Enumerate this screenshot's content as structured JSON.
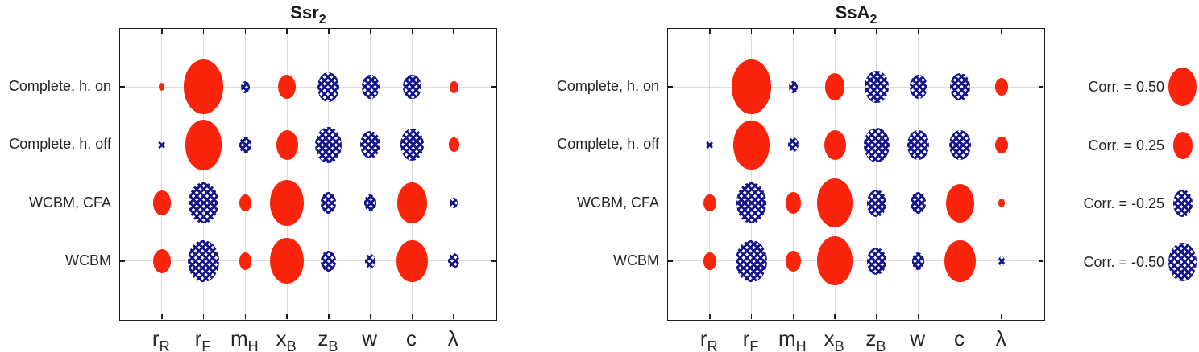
{
  "colors": {
    "positive": "#fa230b",
    "negative": "#14148c",
    "grid": "#dcdcdc",
    "axis": "#1c1c1c",
    "text": "#262626"
  },
  "legend": {
    "items": [
      {
        "label": "Corr. = 0.50",
        "value": 0.5
      },
      {
        "label": "Corr. = 0.25",
        "value": 0.25
      },
      {
        "label": "Corr. = -0.25",
        "value": -0.25
      },
      {
        "label": "Corr. = -0.50",
        "value": -0.5
      }
    ]
  },
  "chart_data": [
    {
      "type": "bubble",
      "title": "Ssr",
      "title_sub": "2",
      "rows": [
        "Complete, h. on",
        "Complete, h. off",
        "WCBM, CFA",
        "WCBM"
      ],
      "columns": [
        {
          "name": "r_R",
          "base": "r",
          "sub": "R"
        },
        {
          "name": "r_F",
          "base": "r",
          "sub": "F"
        },
        {
          "name": "m_H",
          "base": "m",
          "sub": "H"
        },
        {
          "name": "x_B",
          "base": "x",
          "sub": "B"
        },
        {
          "name": "z_B",
          "base": "z",
          "sub": "B"
        },
        {
          "name": "w",
          "base": "w",
          "sub": ""
        },
        {
          "name": "c",
          "base": "c",
          "sub": ""
        },
        {
          "name": "lambda",
          "base": "λ",
          "sub": ""
        }
      ],
      "values": [
        [
          0.02,
          1.0,
          -0.05,
          0.2,
          -0.3,
          -0.2,
          -0.2,
          0.05
        ],
        [
          -0.03,
          0.85,
          -0.1,
          0.3,
          -0.45,
          -0.25,
          -0.35,
          0.07
        ],
        [
          0.2,
          -0.55,
          0.1,
          0.7,
          -0.15,
          -0.1,
          0.55,
          -0.04
        ],
        [
          0.2,
          -0.6,
          0.1,
          0.7,
          -0.15,
          -0.07,
          0.6,
          -0.08
        ]
      ],
      "encoding": "marker area proportional to |corr|; red solid = positive, blue crosshatch = negative",
      "grid": "on"
    },
    {
      "type": "bubble",
      "title": "SsA",
      "title_sub": "2",
      "rows": [
        "Complete, h. on",
        "Complete, h. off",
        "WCBM, CFA",
        "WCBM"
      ],
      "columns": [
        {
          "name": "r_R",
          "base": "r",
          "sub": "R"
        },
        {
          "name": "r_F",
          "base": "r",
          "sub": "F"
        },
        {
          "name": "m_H",
          "base": "m",
          "sub": "H"
        },
        {
          "name": "x_B",
          "base": "x",
          "sub": "B"
        },
        {
          "name": "z_B",
          "base": "z",
          "sub": "B"
        },
        {
          "name": "w",
          "base": "w",
          "sub": ""
        },
        {
          "name": "c",
          "base": "c",
          "sub": ""
        },
        {
          "name": "lambda",
          "base": "λ",
          "sub": ""
        }
      ],
      "values": [
        [
          0.0,
          1.0,
          -0.05,
          0.25,
          -0.35,
          -0.2,
          -0.25,
          0.1
        ],
        [
          -0.03,
          0.8,
          -0.07,
          0.3,
          -0.4,
          -0.3,
          -0.3,
          0.1
        ],
        [
          0.1,
          -0.55,
          0.15,
          0.8,
          -0.25,
          -0.15,
          0.5,
          0.03
        ],
        [
          0.1,
          -0.6,
          0.15,
          0.8,
          -0.25,
          -0.1,
          0.6,
          -0.03
        ]
      ],
      "encoding": "marker area proportional to |corr|; red solid = positive, blue crosshatch = negative",
      "grid": "on"
    }
  ]
}
